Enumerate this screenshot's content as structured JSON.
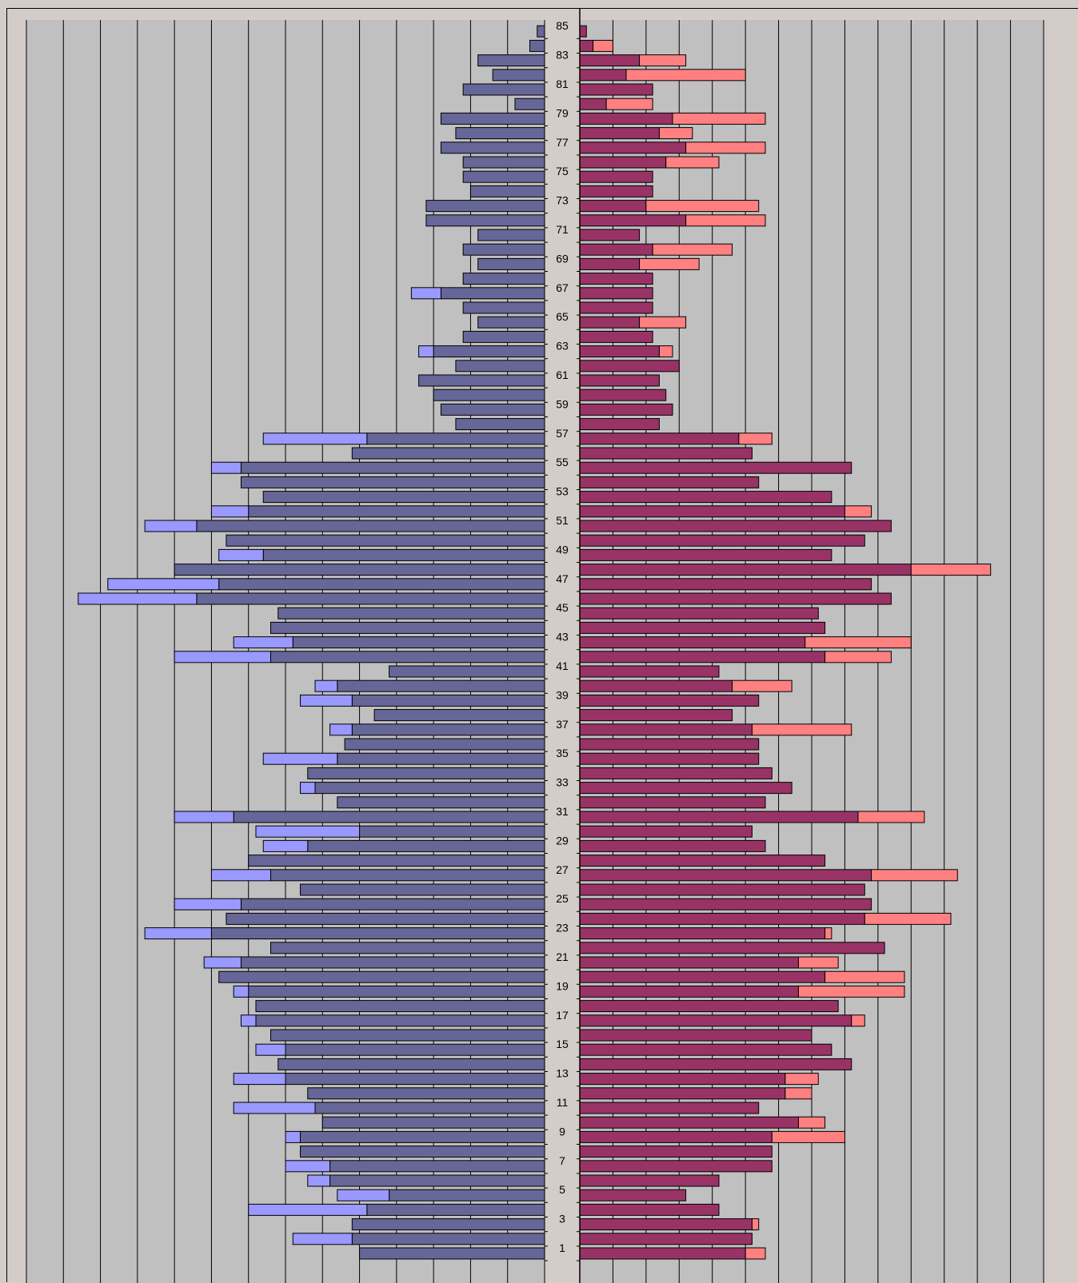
{
  "chart_data": {
    "type": "bar",
    "orientation": "horizontal",
    "layout": "population-pyramid",
    "title": "",
    "xlabel": "",
    "ylabel": "",
    "grid": true,
    "categories": [
      1,
      2,
      3,
      4,
      5,
      6,
      7,
      8,
      9,
      10,
      11,
      12,
      13,
      14,
      15,
      16,
      17,
      18,
      19,
      20,
      21,
      22,
      23,
      24,
      25,
      26,
      27,
      28,
      29,
      30,
      31,
      32,
      33,
      34,
      35,
      36,
      37,
      38,
      39,
      40,
      41,
      42,
      43,
      44,
      45,
      46,
      47,
      48,
      49,
      50,
      51,
      52,
      53,
      54,
      55,
      56,
      57,
      58,
      59,
      60,
      61,
      62,
      63,
      64,
      65,
      66,
      67,
      68,
      69,
      70,
      71,
      72,
      73,
      74,
      75,
      76,
      77,
      78,
      79,
      80,
      81,
      82,
      83,
      84,
      85
    ],
    "y_tick_labels": [
      "1",
      "3",
      "5",
      "7",
      "9",
      "11",
      "13",
      "15",
      "17",
      "19",
      "21",
      "23",
      "25",
      "27",
      "29",
      "31",
      "33",
      "35",
      "37",
      "39",
      "41",
      "43",
      "45",
      "47",
      "49",
      "51",
      "53",
      "55",
      "57",
      "59",
      "61",
      "63",
      "65",
      "67",
      "69",
      "71",
      "73",
      "75",
      "77",
      "79",
      "81",
      "83",
      "85"
    ],
    "left_xlim": [
      0,
      140
    ],
    "right_xlim": [
      0,
      140
    ],
    "series": [
      {
        "side": "left",
        "color": "#666699",
        "values": [
          50,
          52,
          52,
          48,
          42,
          58,
          58,
          66,
          66,
          60,
          62,
          64,
          70,
          72,
          70,
          74,
          78,
          78,
          80,
          88,
          82,
          74,
          90,
          86,
          82,
          66,
          74,
          80,
          64,
          50,
          84,
          56,
          62,
          64,
          56,
          54,
          52,
          46,
          52,
          56,
          42,
          74,
          68,
          74,
          72,
          94,
          88,
          100,
          76,
          86,
          94,
          80,
          76,
          82,
          82,
          52,
          48,
          24,
          28,
          30,
          34,
          24,
          30,
          22,
          18,
          22,
          28,
          22,
          18,
          22,
          18,
          32,
          32,
          20,
          22,
          22,
          28,
          24,
          28,
          8,
          22,
          14,
          18,
          4,
          2
        ]
      },
      {
        "side": "left",
        "color": "#9999ff",
        "values": [
          0,
          16,
          0,
          32,
          14,
          6,
          12,
          0,
          4,
          0,
          22,
          0,
          14,
          0,
          8,
          0,
          4,
          0,
          4,
          0,
          10,
          0,
          18,
          0,
          18,
          0,
          16,
          0,
          12,
          28,
          16,
          0,
          4,
          0,
          20,
          0,
          6,
          0,
          14,
          6,
          0,
          26,
          16,
          0,
          0,
          32,
          30,
          0,
          12,
          0,
          14,
          10,
          0,
          0,
          8,
          0,
          28,
          0,
          0,
          0,
          0,
          0,
          4,
          0,
          0,
          0,
          8,
          0,
          0,
          0,
          0,
          0,
          0,
          0,
          0,
          0,
          0,
          0,
          0,
          0,
          0,
          0,
          0,
          0,
          0
        ]
      },
      {
        "side": "right",
        "color": "#993366",
        "values": [
          50,
          52,
          52,
          42,
          32,
          42,
          58,
          58,
          58,
          66,
          54,
          62,
          62,
          82,
          76,
          70,
          82,
          78,
          66,
          74,
          66,
          92,
          74,
          86,
          88,
          86,
          88,
          74,
          56,
          52,
          84,
          56,
          64,
          58,
          54,
          54,
          52,
          46,
          54,
          46,
          42,
          74,
          68,
          74,
          72,
          94,
          88,
          100,
          76,
          86,
          94,
          80,
          76,
          54,
          82,
          52,
          48,
          24,
          28,
          26,
          24,
          30,
          24,
          22,
          18,
          22,
          22,
          22,
          18,
          22,
          18,
          32,
          20,
          22,
          22,
          26,
          32,
          24,
          28,
          8,
          22,
          14,
          18,
          4,
          2
        ]
      },
      {
        "side": "right",
        "color": "#ff8080",
        "values": [
          6,
          0,
          2,
          0,
          0,
          0,
          0,
          0,
          22,
          8,
          0,
          8,
          10,
          0,
          0,
          0,
          4,
          0,
          32,
          24,
          12,
          0,
          2,
          26,
          0,
          0,
          26,
          0,
          0,
          0,
          20,
          0,
          0,
          0,
          0,
          0,
          30,
          0,
          0,
          18,
          0,
          20,
          32,
          0,
          0,
          0,
          0,
          24,
          0,
          0,
          0,
          8,
          0,
          0,
          0,
          0,
          10,
          0,
          0,
          0,
          0,
          0,
          4,
          0,
          14,
          0,
          0,
          0,
          18,
          24,
          0,
          24,
          34,
          0,
          0,
          16,
          24,
          10,
          28,
          14,
          0,
          36,
          14,
          6,
          0
        ]
      }
    ]
  }
}
